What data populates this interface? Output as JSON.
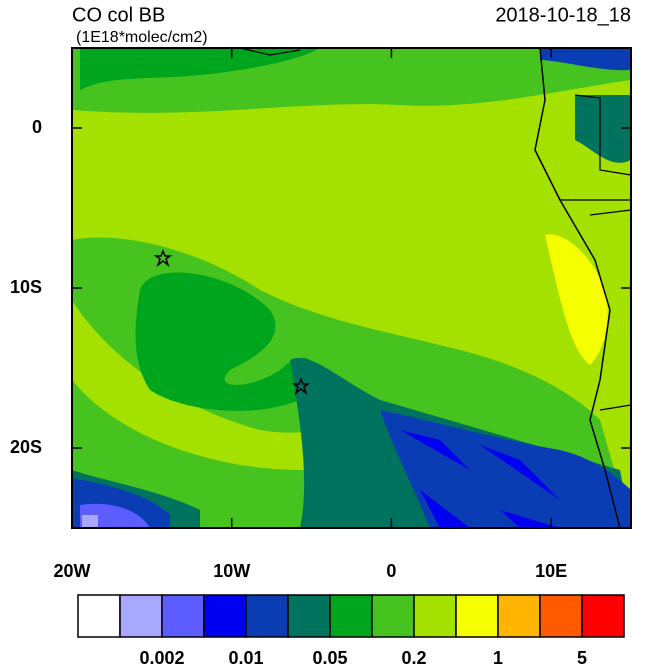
{
  "chart_data": {
    "type": "map",
    "title": "CO col BB",
    "subtitle": "(1E18*molec/cm2)",
    "date": "2018-10-18_18",
    "xlim": [
      -20,
      15
    ],
    "ylim": [
      -25,
      5
    ],
    "xticks": [
      {
        "value": -20,
        "label": "20W"
      },
      {
        "value": -10,
        "label": "10W"
      },
      0,
      {
        "value": 10,
        "label": "10E"
      }
    ],
    "yticks": [
      0,
      {
        "value": -10,
        "label": "10S"
      },
      {
        "value": -20,
        "label": "20S"
      }
    ],
    "colorbar": {
      "colors": [
        "#ffffff",
        "#a8a8ff",
        "#5c5cff",
        "#0000f0",
        "#0a3cb4",
        "#00735f",
        "#00a51e",
        "#46c31e",
        "#a5e100",
        "#f5ff00",
        "#ffb400",
        "#ff5a00",
        "#ff0000"
      ],
      "levels": [
        0.002,
        0.01,
        0.05,
        0.2,
        1,
        5
      ]
    }
  }
}
